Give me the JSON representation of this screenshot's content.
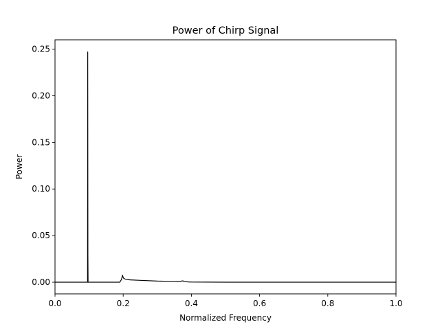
{
  "chart_data": {
    "type": "line",
    "title": "Power of Chirp Signal",
    "xlabel": "Normalized Frequency",
    "ylabel": "Power",
    "xlim": [
      0.0,
      1.0
    ],
    "ylim": [
      -0.0125,
      0.26
    ],
    "grid": false,
    "xticks": [
      0.0,
      0.2,
      0.4,
      0.6,
      0.8,
      1.0
    ],
    "xtick_labels": [
      "0.0",
      "0.2",
      "0.4",
      "0.6",
      "0.8",
      "1.0"
    ],
    "yticks": [
      0.0,
      0.05,
      0.1,
      0.15,
      0.2,
      0.25
    ],
    "ytick_labels": [
      "0.00",
      "0.05",
      "0.10",
      "0.15",
      "0.20",
      "0.25"
    ],
    "series": [
      {
        "color": "#000000",
        "x": [
          0.0,
          0.05,
          0.09,
          0.0955,
          0.096,
          0.0965,
          0.097,
          0.0975,
          0.098,
          0.1,
          0.15,
          0.19,
          0.195,
          0.198,
          0.2,
          0.202,
          0.205,
          0.21,
          0.22,
          0.25,
          0.3,
          0.33,
          0.35,
          0.36,
          0.365,
          0.37,
          0.375,
          0.38,
          0.39,
          0.4,
          0.45,
          0.5,
          0.6,
          0.7,
          0.8,
          0.9,
          1.0
        ],
        "y": [
          0.0,
          0.0,
          0.0,
          0.0,
          0.247,
          0.03,
          0.0,
          0.0,
          0.0,
          0.0,
          0.0,
          0.0,
          0.003,
          0.0075,
          0.005,
          0.004,
          0.0035,
          0.003,
          0.0025,
          0.002,
          0.0012,
          0.001,
          0.0008,
          0.001,
          0.0006,
          0.0012,
          0.0014,
          0.0008,
          0.0003,
          0.0002,
          0.0001,
          0.0,
          0.0,
          0.0,
          0.0,
          0.0,
          0.0
        ]
      }
    ]
  }
}
